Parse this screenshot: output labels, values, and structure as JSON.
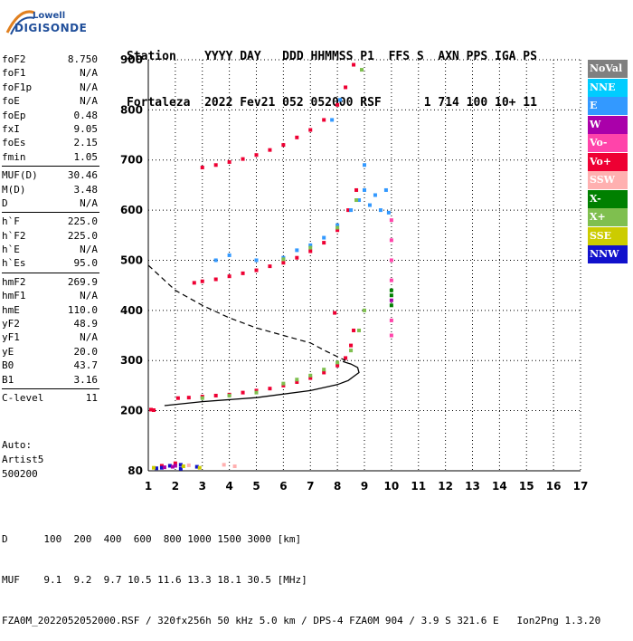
{
  "logo": {
    "brand": "Lowell",
    "name": "DIGISONDE"
  },
  "header": {
    "labels": "Station    YYYY DAY   DDD HHMMSS P1  FFS S  AXN PPS IGA PS",
    "values": "Fortaleza  2022 Fev21 052 052000 RSF      1 714 100 10+ 11"
  },
  "params": [
    {
      "k": "foF2",
      "v": "8.750"
    },
    {
      "k": "foF1",
      "v": "N/A"
    },
    {
      "k": "foF1p",
      "v": "N/A"
    },
    {
      "k": "foE",
      "v": "N/A"
    },
    {
      "k": "foEp",
      "v": "0.48"
    },
    {
      "k": "fxI",
      "v": "9.05"
    },
    {
      "k": "foEs",
      "v": "2.15"
    },
    {
      "k": "fmin",
      "v": "1.05"
    },
    {
      "k": "MUF(D)",
      "v": "30.46"
    },
    {
      "k": "M(D)",
      "v": "3.48"
    },
    {
      "k": "D",
      "v": "N/A"
    },
    {
      "k": "h`F",
      "v": "225.0"
    },
    {
      "k": "h`F2",
      "v": "225.0"
    },
    {
      "k": "h`E",
      "v": "N/A"
    },
    {
      "k": "h`Es",
      "v": "95.0"
    },
    {
      "k": "hmF2",
      "v": "269.9"
    },
    {
      "k": "hmF1",
      "v": "N/A"
    },
    {
      "k": "hmE",
      "v": "110.0"
    },
    {
      "k": "yF2",
      "v": "48.9"
    },
    {
      "k": "yF1",
      "v": "N/A"
    },
    {
      "k": "yE",
      "v": "20.0"
    },
    {
      "k": "B0",
      "v": "43.7"
    },
    {
      "k": "B1",
      "v": "3.16"
    },
    {
      "k": "C-level",
      "v": "11"
    }
  ],
  "info": {
    "l1": "Auto:",
    "l2": "Artist5",
    "l3": "500200"
  },
  "footer": {
    "d_row": "D      100  200  400  600  800 1000 1500 3000 [km]",
    "muf_row": "MUF    9.1  9.2  9.7 10.5 11.6 13.3 18.1 30.5 [MHz]",
    "file_row": "FZA0M_2022052052000.RSF / 320fx256h 50 kHz 5.0 km / DPS-4 FZA0M 904 / 3.9 S 321.6 E   Ion2Png 1.3.20"
  },
  "legend": [
    {
      "label": "NoVal",
      "color": "#808080"
    },
    {
      "label": "NNE",
      "color": "#00ccff"
    },
    {
      "label": "E",
      "color": "#3399ff"
    },
    {
      "label": "W",
      "color": "#aa00aa"
    },
    {
      "label": "Vo-",
      "color": "#ff44aa"
    },
    {
      "label": "Vo+",
      "color": "#ee0033"
    },
    {
      "label": "SSW",
      "color": "#ffb0b0"
    },
    {
      "label": "X-",
      "color": "#008000"
    },
    {
      "label": "X+",
      "color": "#7fbf4f"
    },
    {
      "label": "SSE",
      "color": "#cccc00"
    },
    {
      "label": "NNW",
      "color": "#1111cc"
    }
  ],
  "chart_data": {
    "type": "scatter",
    "xlim": [
      1,
      17
    ],
    "ylim": [
      80,
      900
    ],
    "xticks": [
      1,
      2,
      3,
      4,
      5,
      6,
      7,
      8,
      9,
      10,
      11,
      12,
      13,
      14,
      15,
      16,
      17
    ],
    "yticks": [
      80,
      200,
      300,
      400,
      500,
      600,
      700,
      800,
      900
    ],
    "grid": true,
    "series": [
      {
        "color": "#ee0033",
        "points": [
          [
            1.1,
            202
          ],
          [
            1.2,
            201
          ],
          [
            2.1,
            225
          ],
          [
            2.5,
            226
          ],
          [
            3,
            228
          ],
          [
            3.5,
            230
          ],
          [
            4,
            232
          ],
          [
            4.5,
            236
          ],
          [
            5,
            240
          ],
          [
            5.5,
            244
          ],
          [
            6,
            250
          ],
          [
            6.5,
            257
          ],
          [
            7,
            265
          ],
          [
            7.5,
            276
          ],
          [
            8,
            290
          ],
          [
            8.3,
            305
          ],
          [
            8.5,
            330
          ],
          [
            8.6,
            360
          ],
          [
            2.7,
            455
          ],
          [
            3,
            458
          ],
          [
            3.5,
            462
          ],
          [
            4,
            468
          ],
          [
            4.5,
            474
          ],
          [
            5,
            480
          ],
          [
            5.5,
            488
          ],
          [
            6,
            495
          ],
          [
            6.5,
            505
          ],
          [
            7,
            518
          ],
          [
            7.5,
            535
          ],
          [
            8,
            560
          ],
          [
            8.4,
            600
          ],
          [
            8.7,
            640
          ],
          [
            3,
            685
          ],
          [
            3.5,
            690
          ],
          [
            4,
            696
          ],
          [
            4.5,
            702
          ],
          [
            5,
            710
          ],
          [
            5.5,
            720
          ],
          [
            6,
            730
          ],
          [
            6.5,
            745
          ],
          [
            7,
            760
          ],
          [
            7.5,
            780
          ],
          [
            8,
            810
          ],
          [
            8.3,
            845
          ],
          [
            8.6,
            890
          ],
          [
            7.9,
            395
          ],
          [
            1.5,
            90
          ],
          [
            2,
            95
          ]
        ]
      },
      {
        "color": "#3399ff",
        "points": [
          [
            6,
            505
          ],
          [
            6.5,
            520
          ],
          [
            7,
            530
          ],
          [
            7.5,
            545
          ],
          [
            8,
            570
          ],
          [
            8.5,
            600
          ],
          [
            8.8,
            620
          ],
          [
            9,
            640
          ],
          [
            9.2,
            610
          ],
          [
            9.4,
            630
          ],
          [
            9.6,
            600
          ],
          [
            9.8,
            640
          ],
          [
            9.9,
            595
          ],
          [
            9,
            690
          ],
          [
            4,
            510
          ],
          [
            5,
            500
          ],
          [
            3.5,
            500
          ],
          [
            7.8,
            780
          ],
          [
            8.1,
            820
          ]
        ]
      },
      {
        "color": "#7fbf4f",
        "points": [
          [
            6,
            254
          ],
          [
            6.5,
            262
          ],
          [
            7,
            270
          ],
          [
            7.5,
            282
          ],
          [
            8,
            296
          ],
          [
            8.5,
            320
          ],
          [
            8.8,
            360
          ],
          [
            9,
            400
          ],
          [
            6,
            502
          ],
          [
            7,
            525
          ],
          [
            8,
            565
          ],
          [
            8.7,
            620
          ],
          [
            8.9,
            880
          ],
          [
            3,
            225
          ],
          [
            4,
            230
          ],
          [
            5,
            236
          ]
        ]
      },
      {
        "color": "#1111cc",
        "points": [
          [
            1.3,
            85
          ],
          [
            1.8,
            90
          ],
          [
            2.2,
            92
          ],
          [
            2.8,
            88
          ],
          [
            2.2,
            84
          ],
          [
            1.5,
            86
          ]
        ]
      },
      {
        "color": "#ff44aa",
        "points": [
          [
            10,
            580
          ],
          [
            10,
            540
          ],
          [
            10,
            500
          ],
          [
            10,
            460
          ],
          [
            10,
            380
          ],
          [
            10,
            350
          ]
        ]
      },
      {
        "color": "#008000",
        "points": [
          [
            10,
            410
          ],
          [
            10,
            440
          ],
          [
            10,
            430
          ]
        ]
      },
      {
        "color": "#aa00aa",
        "points": [
          [
            1.6,
            87
          ],
          [
            2,
            90
          ],
          [
            1.9,
            88
          ],
          [
            10,
            420
          ]
        ]
      },
      {
        "color": "#cccc00",
        "points": [
          [
            1.2,
            86
          ],
          [
            2.3,
            89
          ],
          [
            2.9,
            86
          ]
        ]
      },
      {
        "color": "#ffb0b0",
        "points": [
          [
            3.8,
            92
          ],
          [
            4.2,
            89
          ],
          [
            2.5,
            91
          ]
        ]
      }
    ],
    "profile_solid": [
      [
        1.6,
        210
      ],
      [
        3,
        218
      ],
      [
        5,
        226
      ],
      [
        7,
        240
      ],
      [
        8,
        252
      ],
      [
        8.4,
        260
      ],
      [
        8.6,
        268
      ],
      [
        8.8,
        276
      ],
      [
        8.75,
        286
      ],
      [
        8.5,
        293
      ],
      [
        8.2,
        298
      ]
    ],
    "profile_dashed": [
      [
        1,
        490
      ],
      [
        2,
        440
      ],
      [
        3,
        410
      ],
      [
        4,
        385
      ],
      [
        5,
        365
      ],
      [
        6,
        350
      ],
      [
        7,
        335
      ],
      [
        7.6,
        318
      ],
      [
        8.3,
        300
      ]
    ]
  }
}
